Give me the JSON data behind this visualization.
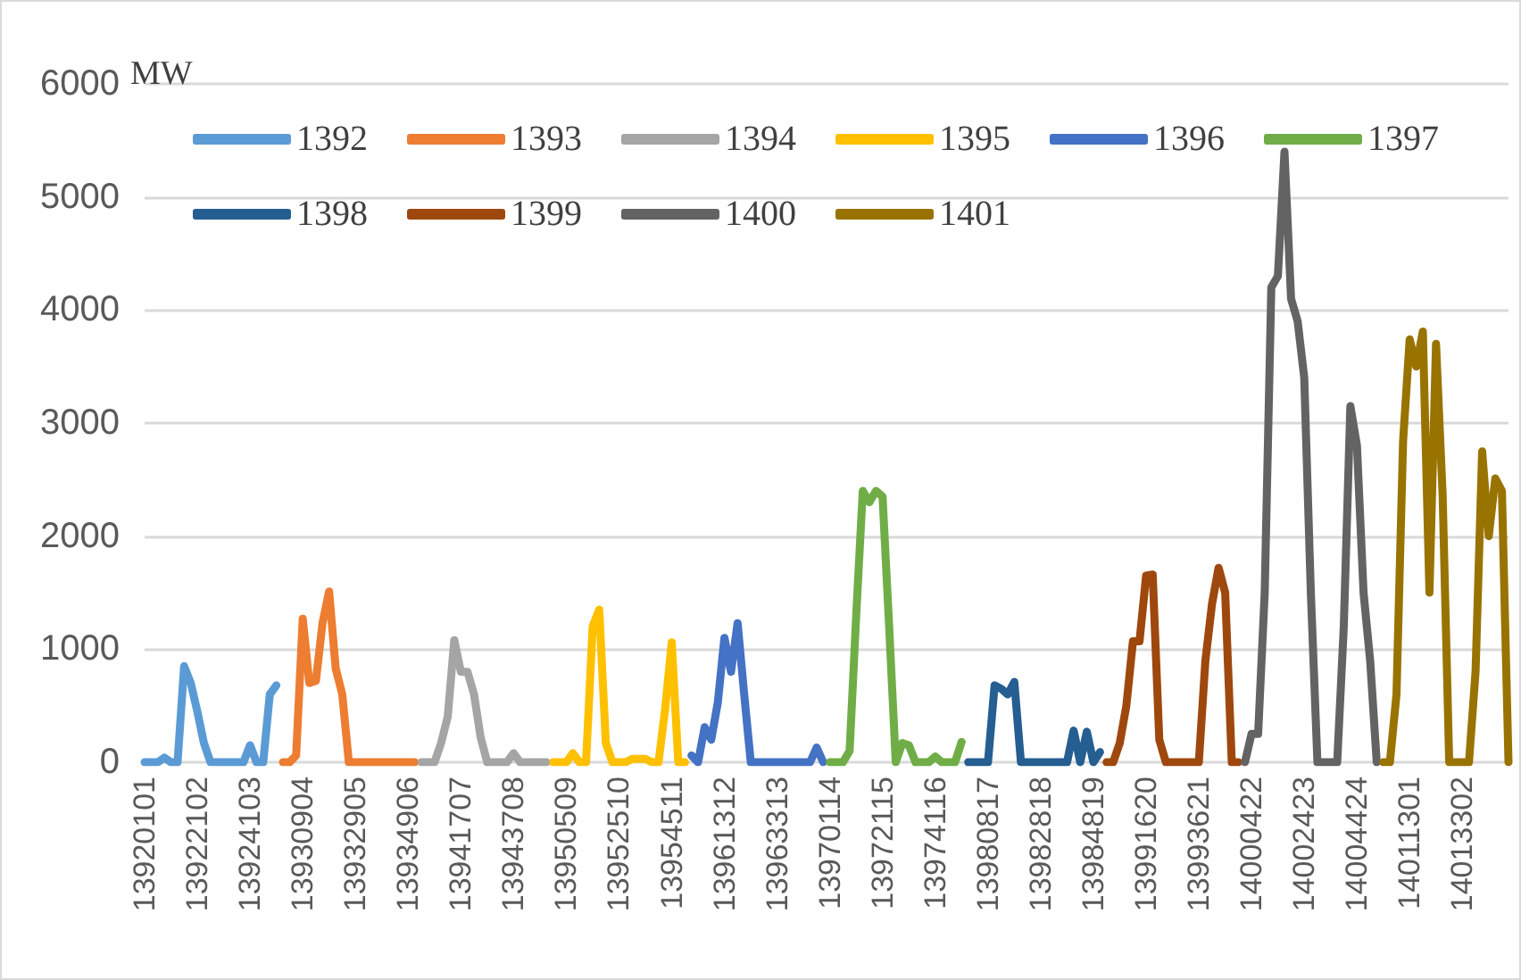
{
  "chart_data": {
    "type": "line",
    "ylabel": "MW",
    "categories": [
      "13920101",
      null,
      null,
      null,
      null,
      null,
      null,
      null,
      "13922102",
      null,
      null,
      null,
      null,
      null,
      null,
      null,
      "13924103",
      null,
      null,
      null,
      null,
      null,
      null,
      null,
      "13930904",
      null,
      null,
      null,
      null,
      null,
      null,
      null,
      "13932905",
      null,
      null,
      null,
      null,
      null,
      null,
      null,
      "13934906",
      null,
      null,
      null,
      null,
      null,
      null,
      null,
      "13941707",
      null,
      null,
      null,
      null,
      null,
      null,
      null,
      "13943708",
      null,
      null,
      null,
      null,
      null,
      null,
      null,
      "13950509",
      null,
      null,
      null,
      null,
      null,
      null,
      null,
      "13952510",
      null,
      null,
      null,
      null,
      null,
      null,
      null,
      "13954511",
      null,
      null,
      null,
      null,
      null,
      null,
      null,
      "13961312",
      null,
      null,
      null,
      null,
      null,
      null,
      null,
      "13963313",
      null,
      null,
      null,
      null,
      null,
      null,
      null,
      "13970114",
      null,
      null,
      null,
      null,
      null,
      null,
      null,
      "13972115",
      null,
      null,
      null,
      null,
      null,
      null,
      null,
      "13974116",
      null,
      null,
      null,
      null,
      null,
      null,
      null,
      "13980817",
      null,
      null,
      null,
      null,
      null,
      null,
      null,
      "13982818",
      null,
      null,
      null,
      null,
      null,
      null,
      null,
      "13984819",
      null,
      null,
      null,
      null,
      null,
      null,
      null,
      "13991620",
      null,
      null,
      null,
      null,
      null,
      null,
      null,
      "13993621",
      null,
      null,
      null,
      null,
      null,
      null,
      null,
      "14000422",
      null,
      null,
      null,
      null,
      null,
      null,
      null,
      "14002423",
      null,
      null,
      null,
      null,
      null,
      null,
      null,
      "14004424",
      null,
      null,
      null,
      null,
      null,
      null,
      null,
      "14011301",
      null,
      null,
      null,
      null,
      null,
      null,
      null,
      "14013302",
      null,
      null,
      null,
      null,
      null,
      null,
      null
    ],
    "series": [
      {
        "name": "1392",
        "color": "#5b9bd5",
        "values": [
          0,
          0,
          0,
          40,
          0,
          0,
          850,
          700,
          450,
          170,
          0,
          0,
          0,
          0,
          0,
          0,
          150,
          0,
          0,
          600,
          680,
          null,
          null,
          null,
          null,
          null,
          null,
          null,
          null,
          null,
          null,
          null,
          null,
          null,
          null,
          null,
          null,
          null,
          null,
          null,
          null,
          null,
          null,
          null,
          null,
          null,
          null,
          null,
          null,
          null,
          null,
          null,
          null,
          null,
          null,
          null,
          null,
          null,
          null,
          null,
          null,
          null,
          null,
          null,
          null,
          null,
          null,
          null,
          null,
          null,
          null,
          null,
          null,
          null,
          null,
          null,
          null,
          null,
          null,
          null,
          null,
          null,
          null,
          null,
          null,
          null,
          null,
          null,
          null,
          null,
          null,
          null,
          null,
          null,
          null,
          null,
          null,
          null,
          null,
          null,
          null,
          null,
          null,
          null,
          null,
          null,
          null,
          null,
          null,
          null,
          null,
          null,
          null,
          null,
          null,
          null,
          null,
          null,
          null,
          null,
          null,
          null,
          null,
          null,
          null,
          null,
          null,
          null,
          null,
          null,
          null,
          null,
          null,
          null,
          null,
          null,
          null,
          null,
          null,
          null,
          null,
          null,
          null,
          null,
          null,
          null,
          null,
          null,
          null,
          null,
          null,
          null,
          null,
          null,
          null,
          null,
          null,
          null,
          null,
          null,
          null,
          null,
          null,
          null,
          null,
          null,
          null,
          null,
          null,
          null,
          null,
          null,
          null,
          null,
          null,
          null,
          null,
          null,
          null,
          null,
          null,
          null,
          null,
          null,
          null,
          null,
          null,
          null,
          null,
          null,
          null,
          null,
          null,
          null,
          null,
          null,
          null,
          null,
          null,
          null,
          null,
          null,
          null,
          null,
          null,
          null,
          null,
          null
        ]
      },
      {
        "name": "1393",
        "color": "#ed7d31",
        "values": [
          null,
          null,
          null,
          null,
          null,
          null,
          null,
          null,
          null,
          null,
          null,
          null,
          null,
          null,
          null,
          null,
          null,
          null,
          null,
          null,
          null,
          0,
          0,
          60,
          1270,
          700,
          720,
          1230,
          1510,
          830,
          600,
          0,
          0,
          0,
          0,
          0,
          0,
          0,
          0,
          0,
          0,
          0,
          null,
          null,
          null,
          null,
          null,
          null,
          null,
          null,
          null,
          null,
          null,
          null,
          null,
          null,
          null,
          null,
          null,
          null,
          null,
          null,
          null,
          null,
          null,
          null,
          null,
          null,
          null,
          null,
          null,
          null,
          null,
          null,
          null,
          null,
          null,
          null,
          null,
          null,
          null,
          null,
          null,
          null,
          null,
          null,
          null,
          null,
          null,
          null,
          null,
          null,
          null,
          null,
          null,
          null,
          null,
          null,
          null,
          null,
          null,
          null,
          null,
          null,
          null,
          null,
          null,
          null,
          null,
          null,
          null,
          null,
          null,
          null,
          null,
          null,
          null,
          null,
          null,
          null,
          null,
          null,
          null,
          null,
          null,
          null,
          null,
          null,
          null,
          null,
          null,
          null,
          null,
          null,
          null,
          null,
          null,
          null,
          null,
          null,
          null,
          null,
          null,
          null,
          null,
          null,
          null,
          null,
          null,
          null,
          null,
          null,
          null,
          null,
          null,
          null,
          null,
          null,
          null,
          null,
          null,
          null,
          null,
          null,
          null,
          null,
          null,
          null,
          null,
          null,
          null,
          null,
          null,
          null,
          null,
          null,
          null,
          null,
          null,
          null,
          null,
          null,
          null,
          null,
          null,
          null,
          null,
          null,
          null,
          null,
          null,
          null,
          null,
          null,
          null,
          null,
          null,
          null,
          null,
          null,
          null,
          null,
          null,
          null,
          null,
          null,
          null,
          null
        ]
      },
      {
        "name": "1394",
        "color": "#a5a5a5",
        "values": [
          null,
          null,
          null,
          null,
          null,
          null,
          null,
          null,
          null,
          null,
          null,
          null,
          null,
          null,
          null,
          null,
          null,
          null,
          null,
          null,
          null,
          null,
          null,
          null,
          null,
          null,
          null,
          null,
          null,
          null,
          null,
          null,
          null,
          null,
          null,
          null,
          null,
          null,
          null,
          null,
          null,
          null,
          0,
          0,
          0,
          170,
          400,
          1080,
          800,
          800,
          600,
          220,
          0,
          0,
          0,
          0,
          80,
          0,
          0,
          0,
          0,
          0,
          null,
          null,
          null,
          null,
          null,
          null,
          null,
          null,
          null,
          null,
          null,
          null,
          null,
          null,
          null,
          null,
          null,
          null,
          null,
          null,
          null,
          null,
          null,
          null,
          null,
          null,
          null,
          null,
          null,
          null,
          null,
          null,
          null,
          null,
          null,
          null,
          null,
          null,
          null,
          null,
          null,
          null,
          null,
          null,
          null,
          null,
          null,
          null,
          null,
          null,
          null,
          null,
          null,
          null,
          null,
          null,
          null,
          null,
          null,
          null,
          null,
          null,
          null,
          null,
          null,
          null,
          null,
          null,
          null,
          null,
          null,
          null,
          null,
          null,
          null,
          null,
          null,
          null,
          null,
          null,
          null,
          null,
          null,
          null,
          null,
          null,
          null,
          null,
          null,
          null,
          null,
          null,
          null,
          null,
          null,
          null,
          null,
          null,
          null,
          null,
          null,
          null,
          null,
          null,
          null,
          null,
          null,
          null,
          null,
          null,
          null,
          null,
          null,
          null,
          null,
          null,
          null,
          null,
          null,
          null,
          null,
          null,
          null,
          null,
          null,
          null,
          null,
          null,
          null,
          null,
          null,
          null,
          null,
          null,
          null,
          null,
          null,
          null,
          null,
          null,
          null,
          null,
          null,
          null,
          null,
          null
        ]
      },
      {
        "name": "1395",
        "color": "#ffc000",
        "values": [
          null,
          null,
          null,
          null,
          null,
          null,
          null,
          null,
          null,
          null,
          null,
          null,
          null,
          null,
          null,
          null,
          null,
          null,
          null,
          null,
          null,
          null,
          null,
          null,
          null,
          null,
          null,
          null,
          null,
          null,
          null,
          null,
          null,
          null,
          null,
          null,
          null,
          null,
          null,
          null,
          null,
          null,
          null,
          null,
          null,
          null,
          null,
          null,
          null,
          null,
          null,
          null,
          null,
          null,
          null,
          null,
          null,
          null,
          null,
          null,
          null,
          null,
          0,
          0,
          0,
          80,
          0,
          0,
          1200,
          1350,
          170,
          0,
          0,
          0,
          30,
          30,
          30,
          0,
          0,
          470,
          1060,
          0,
          0,
          null,
          null,
          null,
          null,
          null,
          null,
          null,
          null,
          null,
          null,
          null,
          null,
          null,
          null,
          null,
          null,
          null,
          null,
          null,
          null,
          null,
          null,
          null,
          null,
          null,
          null,
          null,
          null,
          null,
          null,
          null,
          null,
          null,
          null,
          null,
          null,
          null,
          null,
          null,
          null,
          null,
          null,
          null,
          null,
          null,
          null,
          null,
          null,
          null,
          null,
          null,
          null,
          null,
          null,
          null,
          null,
          null,
          null,
          null,
          null,
          null,
          null,
          null,
          null,
          null,
          null,
          null,
          null,
          null,
          null,
          null,
          null,
          null,
          null,
          null,
          null,
          null,
          null,
          null,
          null,
          null,
          null,
          null,
          null,
          null,
          null,
          null,
          null,
          null,
          null,
          null,
          null,
          null,
          null,
          null,
          null,
          null,
          null,
          null,
          null,
          null,
          null,
          null,
          null,
          null,
          null,
          null,
          null,
          null,
          null,
          null,
          null,
          null,
          null,
          null,
          null,
          null,
          null,
          null,
          null,
          null,
          null,
          null,
          null,
          null
        ]
      },
      {
        "name": "1396",
        "color": "#4472c4",
        "values": [
          null,
          null,
          null,
          null,
          null,
          null,
          null,
          null,
          null,
          null,
          null,
          null,
          null,
          null,
          null,
          null,
          null,
          null,
          null,
          null,
          null,
          null,
          null,
          null,
          null,
          null,
          null,
          null,
          null,
          null,
          null,
          null,
          null,
          null,
          null,
          null,
          null,
          null,
          null,
          null,
          null,
          null,
          null,
          null,
          null,
          null,
          null,
          null,
          null,
          null,
          null,
          null,
          null,
          null,
          null,
          null,
          null,
          null,
          null,
          null,
          null,
          null,
          null,
          null,
          null,
          null,
          null,
          null,
          null,
          null,
          null,
          null,
          null,
          null,
          null,
          null,
          null,
          null,
          null,
          null,
          null,
          null,
          null,
          60,
          0,
          310,
          200,
          530,
          1100,
          800,
          1230,
          600,
          0,
          0,
          0,
          0,
          0,
          0,
          0,
          0,
          0,
          0,
          130,
          0,
          null,
          null,
          null,
          null,
          null,
          null,
          null,
          null,
          null,
          null,
          null,
          null,
          null,
          null,
          null,
          null,
          null,
          null,
          null,
          null,
          null,
          null,
          null,
          null,
          null,
          null,
          null,
          null,
          null,
          null,
          null,
          null,
          null,
          null,
          null,
          null,
          null,
          null,
          null,
          null,
          null,
          null,
          null,
          null,
          null,
          null,
          null,
          null,
          null,
          null,
          null,
          null,
          null,
          null,
          null,
          null,
          null,
          null,
          null,
          null,
          null,
          null,
          null,
          null,
          null,
          null,
          null,
          null,
          null,
          null,
          null,
          null,
          null,
          null,
          null,
          null,
          null,
          null,
          null,
          null,
          null,
          null,
          null,
          null,
          null,
          null,
          null,
          null,
          null,
          null,
          null,
          null,
          null,
          null,
          null,
          null,
          null,
          null,
          null,
          null,
          null,
          null,
          null,
          null
        ]
      },
      {
        "name": "1397",
        "color": "#70ad47",
        "values": [
          null,
          null,
          null,
          null,
          null,
          null,
          null,
          null,
          null,
          null,
          null,
          null,
          null,
          null,
          null,
          null,
          null,
          null,
          null,
          null,
          null,
          null,
          null,
          null,
          null,
          null,
          null,
          null,
          null,
          null,
          null,
          null,
          null,
          null,
          null,
          null,
          null,
          null,
          null,
          null,
          null,
          null,
          null,
          null,
          null,
          null,
          null,
          null,
          null,
          null,
          null,
          null,
          null,
          null,
          null,
          null,
          null,
          null,
          null,
          null,
          null,
          null,
          null,
          null,
          null,
          null,
          null,
          null,
          null,
          null,
          null,
          null,
          null,
          null,
          null,
          null,
          null,
          null,
          null,
          null,
          null,
          null,
          null,
          null,
          null,
          null,
          null,
          null,
          null,
          null,
          null,
          null,
          null,
          null,
          null,
          null,
          null,
          null,
          null,
          null,
          null,
          null,
          null,
          null,
          0,
          0,
          0,
          100,
          1300,
          2400,
          2300,
          2400,
          2350,
          1200,
          0,
          170,
          150,
          0,
          0,
          0,
          50,
          0,
          0,
          0,
          180,
          null,
          null,
          null,
          null,
          null,
          null,
          null,
          null,
          null,
          null,
          null,
          null,
          null,
          null,
          null,
          null,
          null,
          null,
          null,
          null,
          null,
          null,
          null,
          null,
          null,
          null,
          null,
          null,
          null,
          null,
          null,
          null,
          null,
          null,
          null,
          null,
          null,
          null,
          null,
          null,
          null,
          null,
          null,
          null,
          null,
          null,
          null,
          null,
          null,
          null,
          null,
          null,
          null,
          null,
          null,
          null,
          null,
          null,
          null,
          null,
          null,
          null,
          null,
          null,
          null,
          null,
          null,
          null,
          null,
          null,
          null,
          null,
          null,
          null,
          null,
          null,
          null,
          null,
          null,
          null,
          null,
          null,
          null
        ]
      },
      {
        "name": "1398",
        "color": "#255e91",
        "values": [
          null,
          null,
          null,
          null,
          null,
          null,
          null,
          null,
          null,
          null,
          null,
          null,
          null,
          null,
          null,
          null,
          null,
          null,
          null,
          null,
          null,
          null,
          null,
          null,
          null,
          null,
          null,
          null,
          null,
          null,
          null,
          null,
          null,
          null,
          null,
          null,
          null,
          null,
          null,
          null,
          null,
          null,
          null,
          null,
          null,
          null,
          null,
          null,
          null,
          null,
          null,
          null,
          null,
          null,
          null,
          null,
          null,
          null,
          null,
          null,
          null,
          null,
          null,
          null,
          null,
          null,
          null,
          null,
          null,
          null,
          null,
          null,
          null,
          null,
          null,
          null,
          null,
          null,
          null,
          null,
          null,
          null,
          null,
          null,
          null,
          null,
          null,
          null,
          null,
          null,
          null,
          null,
          null,
          null,
          null,
          null,
          null,
          null,
          null,
          null,
          null,
          null,
          null,
          null,
          null,
          null,
          null,
          null,
          null,
          null,
          null,
          null,
          null,
          null,
          null,
          null,
          null,
          null,
          null,
          null,
          null,
          null,
          null,
          null,
          null,
          0,
          0,
          0,
          0,
          680,
          650,
          600,
          710,
          0,
          0,
          0,
          0,
          0,
          0,
          0,
          0,
          280,
          0,
          270,
          0,
          90,
          null,
          null,
          null,
          null,
          null,
          null,
          null,
          null,
          null,
          null,
          null,
          null,
          null,
          null,
          null,
          null,
          null,
          null,
          null,
          null,
          null,
          null,
          null,
          null,
          null,
          null,
          null,
          null,
          null,
          null,
          null,
          null,
          null,
          null,
          null,
          null,
          null,
          null,
          null,
          null,
          null,
          null,
          null,
          null,
          null,
          null,
          null,
          null,
          null,
          null,
          null,
          null,
          null,
          null,
          null,
          null,
          null,
          null,
          null,
          null,
          null,
          null
        ]
      },
      {
        "name": "1399",
        "color": "#9e480e",
        "values": [
          null,
          null,
          null,
          null,
          null,
          null,
          null,
          null,
          null,
          null,
          null,
          null,
          null,
          null,
          null,
          null,
          null,
          null,
          null,
          null,
          null,
          null,
          null,
          null,
          null,
          null,
          null,
          null,
          null,
          null,
          null,
          null,
          null,
          null,
          null,
          null,
          null,
          null,
          null,
          null,
          null,
          null,
          null,
          null,
          null,
          null,
          null,
          null,
          null,
          null,
          null,
          null,
          null,
          null,
          null,
          null,
          null,
          null,
          null,
          null,
          null,
          null,
          null,
          null,
          null,
          null,
          null,
          null,
          null,
          null,
          null,
          null,
          null,
          null,
          null,
          null,
          null,
          null,
          null,
          null,
          null,
          null,
          null,
          null,
          null,
          null,
          null,
          null,
          null,
          null,
          null,
          null,
          null,
          null,
          null,
          null,
          null,
          null,
          null,
          null,
          null,
          null,
          null,
          null,
          null,
          null,
          null,
          null,
          null,
          null,
          null,
          null,
          null,
          null,
          null,
          null,
          null,
          null,
          null,
          null,
          null,
          null,
          null,
          null,
          null,
          null,
          null,
          null,
          null,
          null,
          null,
          null,
          null,
          null,
          null,
          null,
          null,
          null,
          null,
          null,
          null,
          null,
          null,
          null,
          null,
          null,
          0,
          0,
          170,
          500,
          1070,
          1070,
          1650,
          1660,
          200,
          0,
          0,
          0,
          0,
          0,
          0,
          900,
          1400,
          1720,
          1500,
          0,
          0,
          null,
          null,
          null,
          null,
          null,
          null,
          null,
          null,
          null,
          null,
          null,
          null,
          null,
          null,
          null,
          null,
          null,
          null,
          null,
          null,
          null,
          null,
          null,
          null,
          null,
          null,
          null,
          null,
          null,
          null,
          null,
          null,
          null,
          null,
          null,
          null,
          null,
          null,
          null,
          null,
          null
        ]
      },
      {
        "name": "1400",
        "color": "#636363",
        "values": [
          null,
          null,
          null,
          null,
          null,
          null,
          null,
          null,
          null,
          null,
          null,
          null,
          null,
          null,
          null,
          null,
          null,
          null,
          null,
          null,
          null,
          null,
          null,
          null,
          null,
          null,
          null,
          null,
          null,
          null,
          null,
          null,
          null,
          null,
          null,
          null,
          null,
          null,
          null,
          null,
          null,
          null,
          null,
          null,
          null,
          null,
          null,
          null,
          null,
          null,
          null,
          null,
          null,
          null,
          null,
          null,
          null,
          null,
          null,
          null,
          null,
          null,
          null,
          null,
          null,
          null,
          null,
          null,
          null,
          null,
          null,
          null,
          null,
          null,
          null,
          null,
          null,
          null,
          null,
          null,
          null,
          null,
          null,
          null,
          null,
          null,
          null,
          null,
          null,
          null,
          null,
          null,
          null,
          null,
          null,
          null,
          null,
          null,
          null,
          null,
          null,
          null,
          null,
          null,
          null,
          null,
          null,
          null,
          null,
          null,
          null,
          null,
          null,
          null,
          null,
          null,
          null,
          null,
          null,
          null,
          null,
          null,
          null,
          null,
          null,
          null,
          null,
          null,
          null,
          null,
          null,
          null,
          null,
          null,
          null,
          null,
          null,
          null,
          null,
          null,
          null,
          null,
          null,
          null,
          null,
          null,
          null,
          null,
          null,
          null,
          null,
          null,
          null,
          null,
          null,
          null,
          null,
          null,
          null,
          null,
          null,
          null,
          null,
          null,
          null,
          null,
          null,
          0,
          250,
          250,
          1500,
          4200,
          4300,
          5400,
          4100,
          3900,
          3400,
          1500,
          0,
          0,
          0,
          0,
          1200,
          3150,
          2800,
          1500,
          900,
          0,
          null,
          null,
          null,
          null,
          null,
          null,
          null,
          null,
          null,
          null,
          null,
          null,
          null,
          null,
          null,
          null,
          null,
          null,
          null,
          null
        ]
      },
      {
        "name": "1401",
        "color": "#997300",
        "values": [
          null,
          null,
          null,
          null,
          null,
          null,
          null,
          null,
          null,
          null,
          null,
          null,
          null,
          null,
          null,
          null,
          null,
          null,
          null,
          null,
          null,
          null,
          null,
          null,
          null,
          null,
          null,
          null,
          null,
          null,
          null,
          null,
          null,
          null,
          null,
          null,
          null,
          null,
          null,
          null,
          null,
          null,
          null,
          null,
          null,
          null,
          null,
          null,
          null,
          null,
          null,
          null,
          null,
          null,
          null,
          null,
          null,
          null,
          null,
          null,
          null,
          null,
          null,
          null,
          null,
          null,
          null,
          null,
          null,
          null,
          null,
          null,
          null,
          null,
          null,
          null,
          null,
          null,
          null,
          null,
          null,
          null,
          null,
          null,
          null,
          null,
          null,
          null,
          null,
          null,
          null,
          null,
          null,
          null,
          null,
          null,
          null,
          null,
          null,
          null,
          null,
          null,
          null,
          null,
          null,
          null,
          null,
          null,
          null,
          null,
          null,
          null,
          null,
          null,
          null,
          null,
          null,
          null,
          null,
          null,
          null,
          null,
          null,
          null,
          null,
          null,
          null,
          null,
          null,
          null,
          null,
          null,
          null,
          null,
          null,
          null,
          null,
          null,
          null,
          null,
          null,
          null,
          null,
          null,
          null,
          null,
          null,
          null,
          null,
          null,
          null,
          null,
          null,
          null,
          null,
          null,
          null,
          null,
          null,
          null,
          null,
          null,
          null,
          null,
          null,
          null,
          null,
          null,
          null,
          null,
          null,
          null,
          null,
          null,
          null,
          null,
          null,
          null,
          null,
          null,
          null,
          null,
          null,
          null,
          null,
          null,
          null,
          null,
          0,
          0,
          600,
          2840,
          3740,
          3500,
          3810,
          1500,
          3700,
          2370,
          0,
          0,
          0,
          0,
          800,
          2750,
          2000,
          2510,
          2400,
          0
        ]
      }
    ],
    "ylim": [
      0,
      6000
    ],
    "yticks": [
      0,
      1000,
      2000,
      3000,
      4000,
      5000,
      6000
    ],
    "grid": "y",
    "legend": "top",
    "marker": "none",
    "line_style": "solid"
  }
}
